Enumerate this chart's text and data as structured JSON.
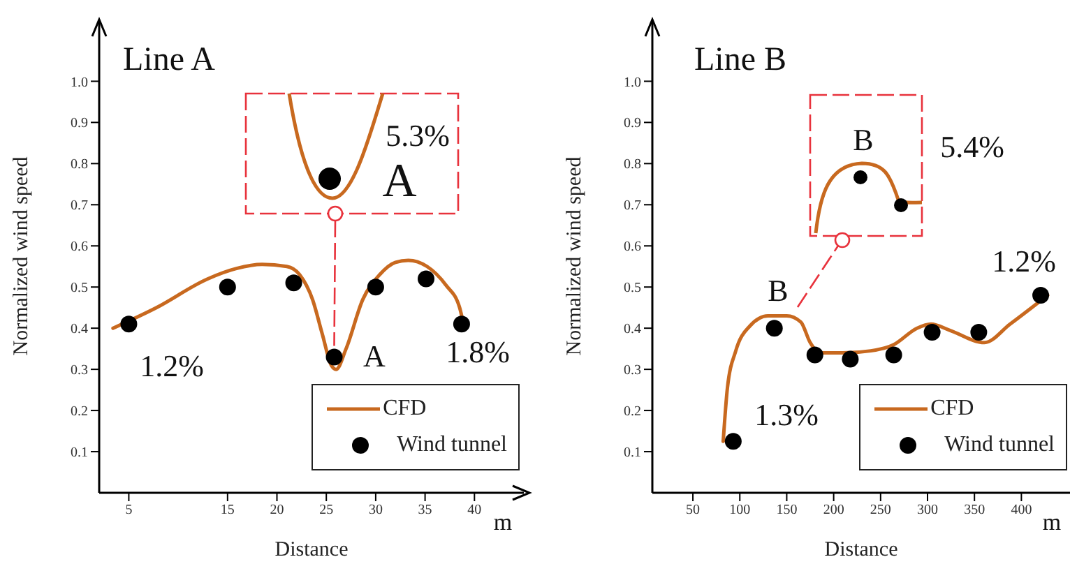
{
  "chart_data": [
    {
      "type": "line",
      "title": "Line A",
      "xlabel": "Distance",
      "ylabel": "Normalized wind speed",
      "xlim": [
        2,
        45
      ],
      "xticks": [
        5,
        15,
        20,
        25,
        30,
        35,
        40
      ],
      "ylim": [
        0,
        1.15
      ],
      "yticks": [
        0.1,
        0.2,
        0.3,
        0.4,
        0.5,
        0.6,
        0.7,
        0.8,
        0.9,
        {
          "value": 1,
          "label": "1.0"
        }
      ],
      "legend": "bottom right",
      "series": [
        {
          "name": "CFD",
          "type": "line",
          "color": "#c8691f",
          "marker": "none",
          "x": [
            3.4,
            7.8,
            13.0,
            15.9,
            18.5,
            21.0,
            22.3,
            23.6,
            24.6,
            25.5,
            26.0,
            27.0,
            28.7,
            30.4,
            32.0,
            33.3,
            35.2,
            37.1,
            38.5,
            38.8
          ],
          "values": [
            0.4,
            0.45,
            0.52,
            0.545,
            0.555,
            0.55,
            0.53,
            0.47,
            0.385,
            0.31,
            0.3,
            0.35,
            0.47,
            0.53,
            0.56,
            0.565,
            0.55,
            0.505,
            0.45,
            0.42
          ]
        },
        {
          "name": "Wind tunnel",
          "type": "scatter",
          "color": "#000000",
          "marker": "circle",
          "x": [
            5,
            15,
            21.7,
            25.8,
            30.0,
            35.1,
            38.7
          ],
          "values": [
            0.41,
            0.5,
            0.51,
            0.33,
            0.5,
            0.52,
            0.41
          ]
        }
      ],
      "annotations": [
        "1.2%",
        "A",
        "1.8%",
        "5.3%",
        {
          "text": "A",
          "x": 25.8,
          "y": 0.33
        },
        "m"
      ]
    },
    {
      "type": "line",
      "title": "Line B",
      "xlabel": "Distance",
      "ylabel": "Normalized wind speed",
      "xlim": [
        6.8,
        451.8
      ],
      "xticks": [
        50,
        100,
        150,
        200,
        250,
        300,
        350,
        400
      ],
      "ylim": [
        0,
        1.15
      ],
      "yticks": [
        0.1,
        0.2,
        0.3,
        0.4,
        0.5,
        0.6,
        0.7,
        0.8,
        0.9,
        {
          "value": 1,
          "label": "1.0"
        }
      ],
      "legend": "bottom right",
      "series": [
        {
          "name": "CFD",
          "type": "line",
          "color": "#c8691f",
          "marker": "none",
          "x": [
            82.3,
            86.8,
            95.7,
            110.6,
            130,
            150,
            165,
            175,
            185,
            209.7,
            239.5,
            264,
            288.8,
            303.7,
            323.5,
            360.7,
            388,
            428
          ],
          "values": [
            0.125,
            0.255,
            0.345,
            0.405,
            0.43,
            0.43,
            0.415,
            0.365,
            0.34,
            0.34,
            0.345,
            0.36,
            0.4,
            0.41,
            0.395,
            0.365,
            0.41,
            0.48
          ]
        },
        {
          "name": "Wind tunnel",
          "type": "scatter",
          "color": "#000000",
          "marker": "circle",
          "x": [
            93,
            136.8,
            180,
            217.7,
            264,
            304.9,
            354.6,
            420.6
          ],
          "values": [
            0.125,
            0.4,
            0.335,
            0.325,
            0.335,
            0.39,
            0.39,
            0.48
          ]
        }
      ],
      "annotations": [
        "B",
        "5.4%",
        "B",
        "1.2%",
        "1.3%",
        "m"
      ]
    }
  ]
}
